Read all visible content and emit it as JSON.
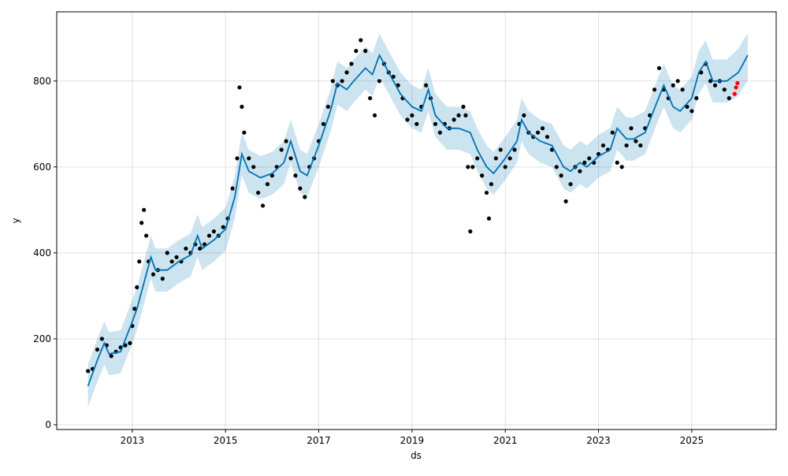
{
  "chart_data": {
    "type": "line",
    "xlabel": "ds",
    "ylabel": "y",
    "xlim": [
      2011.38,
      2026.81
    ],
    "ylim": [
      -11,
      961
    ],
    "xticks": [
      2013,
      2015,
      2017,
      2019,
      2021,
      2023,
      2025
    ],
    "yticks": [
      0,
      200,
      400,
      600,
      800
    ],
    "grid": true,
    "series": [
      {
        "type": "area",
        "color": "#0072B2",
        "x": [
          2012.05,
          2012.25,
          2012.4,
          2012.5,
          2012.75,
          2013.0,
          2013.1,
          2013.25,
          2013.4,
          2013.5,
          2013.75,
          2014.0,
          2014.25,
          2014.4,
          2014.5,
          2014.75,
          2015.0,
          2015.2,
          2015.35,
          2015.5,
          2015.75,
          2016.0,
          2016.25,
          2016.4,
          2016.6,
          2016.75,
          2017.0,
          2017.25,
          2017.4,
          2017.6,
          2017.75,
          2018.0,
          2018.15,
          2018.3,
          2018.5,
          2018.75,
          2019.0,
          2019.2,
          2019.35,
          2019.5,
          2019.75,
          2020.0,
          2020.25,
          2020.4,
          2020.6,
          2020.75,
          2021.0,
          2021.25,
          2021.35,
          2021.5,
          2021.75,
          2022.0,
          2022.25,
          2022.4,
          2022.6,
          2022.75,
          2023.0,
          2023.25,
          2023.4,
          2023.6,
          2023.75,
          2024.0,
          2024.25,
          2024.4,
          2024.6,
          2024.75,
          2025.0,
          2025.15,
          2025.3,
          2025.45,
          2025.75,
          2026.0,
          2026.1,
          2026.2
        ],
        "upper": [
          140,
          200,
          240,
          215,
          220,
          290,
          320,
          380,
          440,
          410,
          410,
          430,
          445,
          490,
          460,
          480,
          505,
          580,
          680,
          640,
          625,
          635,
          660,
          710,
          640,
          630,
          700,
          780,
          845,
          830,
          850,
          880,
          865,
          910,
          870,
          820,
          790,
          780,
          830,
          770,
          740,
          740,
          730,
          690,
          650,
          635,
          670,
          710,
          760,
          730,
          710,
          700,
          650,
          640,
          660,
          650,
          675,
          690,
          740,
          715,
          715,
          730,
          800,
          840,
          790,
          780,
          810,
          870,
          895,
          850,
          850,
          875,
          895,
          910
        ],
        "lower": [
          40,
          100,
          140,
          115,
          120,
          190,
          220,
          280,
          340,
          310,
          310,
          330,
          345,
          390,
          360,
          380,
          405,
          480,
          580,
          540,
          525,
          535,
          560,
          610,
          540,
          530,
          600,
          680,
          745,
          730,
          750,
          780,
          765,
          810,
          770,
          720,
          690,
          680,
          730,
          670,
          640,
          640,
          630,
          590,
          550,
          535,
          570,
          610,
          660,
          630,
          610,
          600,
          550,
          540,
          560,
          550,
          575,
          590,
          640,
          615,
          615,
          630,
          700,
          740,
          690,
          680,
          710,
          770,
          795,
          750,
          750,
          765,
          785,
          800
        ]
      },
      {
        "type": "scatter",
        "color": "#000000",
        "x": [
          2012.05,
          2012.15,
          2012.25,
          2012.35,
          2012.45,
          2012.55,
          2012.65,
          2012.75,
          2012.85,
          2012.95,
          2013.0,
          2013.05,
          2013.1,
          2013.15,
          2013.2,
          2013.25,
          2013.3,
          2013.35,
          2013.45,
          2013.55,
          2013.65,
          2013.75,
          2013.85,
          2013.95,
          2014.05,
          2014.15,
          2014.25,
          2014.35,
          2014.45,
          2014.55,
          2014.65,
          2014.75,
          2014.85,
          2014.95,
          2015.05,
          2015.15,
          2015.25,
          2015.3,
          2015.35,
          2015.4,
          2015.5,
          2015.6,
          2015.7,
          2015.8,
          2015.9,
          2016.0,
          2016.1,
          2016.2,
          2016.3,
          2016.4,
          2016.5,
          2016.6,
          2016.7,
          2016.8,
          2016.9,
          2017.0,
          2017.1,
          2017.2,
          2017.3,
          2017.4,
          2017.5,
          2017.6,
          2017.7,
          2017.8,
          2017.9,
          2018.0,
          2018.1,
          2018.2,
          2018.3,
          2018.4,
          2018.5,
          2018.6,
          2018.7,
          2018.8,
          2018.9,
          2019.0,
          2019.1,
          2019.2,
          2019.3,
          2019.4,
          2019.5,
          2019.6,
          2019.7,
          2019.8,
          2019.9,
          2020.0,
          2020.1,
          2020.15,
          2020.2,
          2020.25,
          2020.3,
          2020.4,
          2020.5,
          2020.6,
          2020.65,
          2020.7,
          2020.8,
          2020.9,
          2021.0,
          2021.1,
          2021.2,
          2021.3,
          2021.4,
          2021.5,
          2021.6,
          2021.7,
          2021.8,
          2021.9,
          2022.0,
          2022.1,
          2022.2,
          2022.3,
          2022.4,
          2022.5,
          2022.6,
          2022.7,
          2022.8,
          2022.9,
          2023.0,
          2023.1,
          2023.2,
          2023.3,
          2023.4,
          2023.5,
          2023.6,
          2023.7,
          2023.8,
          2023.9,
          2024.0,
          2024.1,
          2024.2,
          2024.3,
          2024.4,
          2024.5,
          2024.6,
          2024.7,
          2024.8,
          2024.9,
          2025.0,
          2025.1,
          2025.2,
          2025.3,
          2025.4,
          2025.5,
          2025.6,
          2025.7,
          2025.8
        ],
        "values": [
          125,
          130,
          175,
          200,
          185,
          160,
          170,
          180,
          185,
          190,
          230,
          270,
          320,
          380,
          470,
          500,
          440,
          380,
          350,
          360,
          340,
          400,
          380,
          390,
          380,
          410,
          400,
          420,
          410,
          420,
          440,
          450,
          440,
          460,
          480,
          550,
          620,
          785,
          740,
          680,
          620,
          600,
          540,
          510,
          560,
          580,
          600,
          640,
          660,
          620,
          580,
          550,
          530,
          600,
          620,
          660,
          700,
          740,
          800,
          790,
          800,
          820,
          840,
          870,
          895,
          870,
          760,
          720,
          800,
          840,
          820,
          810,
          790,
          760,
          710,
          720,
          700,
          740,
          790,
          760,
          700,
          680,
          700,
          690,
          710,
          720,
          740,
          720,
          600,
          450,
          600,
          620,
          580,
          540,
          480,
          560,
          620,
          640,
          600,
          620,
          640,
          700,
          720,
          680,
          670,
          680,
          690,
          670,
          640,
          600,
          580,
          520,
          560,
          600,
          590,
          610,
          620,
          610,
          630,
          650,
          640,
          680,
          610,
          600,
          650,
          690,
          660,
          650,
          690,
          720,
          780,
          830,
          780,
          760,
          790,
          800,
          780,
          740,
          730,
          760,
          820,
          840,
          800,
          790,
          800,
          780,
          760
        ]
      },
      {
        "type": "line",
        "color": "#0072B2",
        "x": [
          2012.05,
          2012.25,
          2012.4,
          2012.5,
          2012.75,
          2013.0,
          2013.1,
          2013.25,
          2013.4,
          2013.5,
          2013.75,
          2014.0,
          2014.25,
          2014.4,
          2014.5,
          2014.75,
          2015.0,
          2015.2,
          2015.35,
          2015.5,
          2015.75,
          2016.0,
          2016.25,
          2016.4,
          2016.6,
          2016.75,
          2017.0,
          2017.25,
          2017.4,
          2017.6,
          2017.75,
          2018.0,
          2018.15,
          2018.3,
          2018.5,
          2018.75,
          2019.0,
          2019.2,
          2019.35,
          2019.5,
          2019.75,
          2020.0,
          2020.25,
          2020.4,
          2020.6,
          2020.75,
          2021.0,
          2021.25,
          2021.35,
          2021.5,
          2021.75,
          2022.0,
          2022.25,
          2022.4,
          2022.6,
          2022.75,
          2023.0,
          2023.25,
          2023.4,
          2023.6,
          2023.75,
          2024.0,
          2024.25,
          2024.4,
          2024.6,
          2024.75,
          2025.0,
          2025.15,
          2025.3,
          2025.45,
          2025.75,
          2026.0,
          2026.1,
          2026.2
        ],
        "values": [
          90,
          150,
          190,
          165,
          170,
          240,
          270,
          330,
          390,
          360,
          360,
          380,
          395,
          440,
          410,
          430,
          455,
          530,
          630,
          590,
          575,
          585,
          610,
          660,
          590,
          580,
          650,
          730,
          795,
          780,
          800,
          830,
          815,
          860,
          820,
          770,
          740,
          730,
          780,
          720,
          690,
          690,
          680,
          640,
          600,
          585,
          620,
          660,
          710,
          680,
          660,
          650,
          600,
          590,
          610,
          600,
          625,
          640,
          690,
          665,
          665,
          680,
          750,
          790,
          740,
          730,
          760,
          820,
          845,
          800,
          800,
          820,
          840,
          860
        ]
      },
      {
        "type": "scatter",
        "color": "#ff0000",
        "x": [
          2025.92,
          2025.95,
          2025.98
        ],
        "values": [
          770,
          785,
          795
        ]
      }
    ]
  }
}
